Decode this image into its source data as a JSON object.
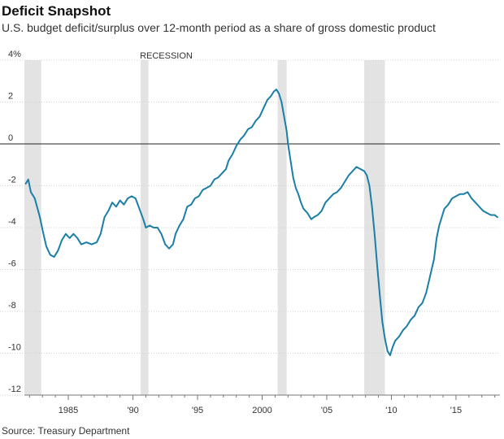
{
  "title": "Deficit Snapshot",
  "subtitle": "U.S. budget deficit/surplus over 12-month period as a share of gross domestic product",
  "source": "Source: Treasury Department",
  "colors": {
    "line": "#1a7ea8",
    "recession": "#e3e3e3",
    "grid": "#d0d0d0",
    "zero": "#222222"
  },
  "chart_data": {
    "type": "line",
    "title": "Deficit Snapshot",
    "ylim": [
      -12,
      4
    ],
    "xlim": [
      1981.6,
      2018.4
    ],
    "grid": true,
    "y_ticks": [
      {
        "value": 4,
        "label": "4%"
      },
      {
        "value": 2,
        "label": "2"
      },
      {
        "value": 0,
        "label": "0"
      },
      {
        "value": -2,
        "label": "-2"
      },
      {
        "value": -4,
        "label": "-4"
      },
      {
        "value": -6,
        "label": "-6"
      },
      {
        "value": -8,
        "label": "-8"
      },
      {
        "value": -10,
        "label": "-10"
      },
      {
        "value": -12,
        "label": "-12"
      }
    ],
    "x_ticks": [
      {
        "value": 1985,
        "label": "1985"
      },
      {
        "value": 1990,
        "label": "'90"
      },
      {
        "value": 1995,
        "label": "'95"
      },
      {
        "value": 2000,
        "label": "2000"
      },
      {
        "value": 2005,
        "label": "'05"
      },
      {
        "value": 2010,
        "label": "'10"
      },
      {
        "value": 2015,
        "label": "'15"
      }
    ],
    "recession_label": "RECESSION",
    "recessions": [
      [
        1981.6,
        1982.9
      ],
      [
        1990.6,
        1991.2
      ],
      [
        2001.2,
        2001.9
      ],
      [
        2007.9,
        2009.5
      ]
    ],
    "series": [
      {
        "values": [
          [
            1981.7,
            -1.9
          ],
          [
            1981.9,
            -1.7
          ],
          [
            1982.1,
            -2.3
          ],
          [
            1982.4,
            -2.6
          ],
          [
            1982.8,
            -3.5
          ],
          [
            1983.0,
            -4.1
          ],
          [
            1983.3,
            -4.9
          ],
          [
            1983.6,
            -5.3
          ],
          [
            1983.9,
            -5.4
          ],
          [
            1984.2,
            -5.1
          ],
          [
            1984.5,
            -4.6
          ],
          [
            1984.8,
            -4.3
          ],
          [
            1985.1,
            -4.5
          ],
          [
            1985.4,
            -4.3
          ],
          [
            1985.7,
            -4.5
          ],
          [
            1986.0,
            -4.8
          ],
          [
            1986.4,
            -4.7
          ],
          [
            1986.8,
            -4.8
          ],
          [
            1987.2,
            -4.7
          ],
          [
            1987.5,
            -4.3
          ],
          [
            1987.8,
            -3.5
          ],
          [
            1988.1,
            -3.2
          ],
          [
            1988.4,
            -2.8
          ],
          [
            1988.7,
            -3.0
          ],
          [
            1989.0,
            -2.7
          ],
          [
            1989.3,
            -2.9
          ],
          [
            1989.6,
            -2.6
          ],
          [
            1989.9,
            -2.5
          ],
          [
            1990.2,
            -2.6
          ],
          [
            1990.5,
            -3.1
          ],
          [
            1990.8,
            -3.6
          ],
          [
            1991.0,
            -4.0
          ],
          [
            1991.3,
            -3.9
          ],
          [
            1991.6,
            -4.0
          ],
          [
            1991.9,
            -4.0
          ],
          [
            1992.2,
            -4.3
          ],
          [
            1992.5,
            -4.8
          ],
          [
            1992.8,
            -5.0
          ],
          [
            1993.1,
            -4.8
          ],
          [
            1993.3,
            -4.3
          ],
          [
            1993.6,
            -3.9
          ],
          [
            1993.9,
            -3.6
          ],
          [
            1994.2,
            -3.0
          ],
          [
            1994.5,
            -2.9
          ],
          [
            1994.8,
            -2.6
          ],
          [
            1995.1,
            -2.5
          ],
          [
            1995.4,
            -2.2
          ],
          [
            1995.7,
            -2.1
          ],
          [
            1996.0,
            -2.0
          ],
          [
            1996.3,
            -1.7
          ],
          [
            1996.6,
            -1.6
          ],
          [
            1996.9,
            -1.4
          ],
          [
            1997.2,
            -1.2
          ],
          [
            1997.4,
            -0.8
          ],
          [
            1997.7,
            -0.5
          ],
          [
            1998.0,
            -0.1
          ],
          [
            1998.3,
            0.2
          ],
          [
            1998.6,
            0.4
          ],
          [
            1998.9,
            0.7
          ],
          [
            1999.2,
            0.8
          ],
          [
            1999.5,
            1.1
          ],
          [
            1999.8,
            1.3
          ],
          [
            2000.1,
            1.7
          ],
          [
            2000.4,
            2.1
          ],
          [
            2000.7,
            2.3
          ],
          [
            2000.9,
            2.5
          ],
          [
            2001.1,
            2.6
          ],
          [
            2001.3,
            2.4
          ],
          [
            2001.5,
            2.0
          ],
          [
            2001.7,
            1.3
          ],
          [
            2001.9,
            0.6
          ],
          [
            2002.0,
            0.0
          ],
          [
            2002.2,
            -0.8
          ],
          [
            2002.4,
            -1.6
          ],
          [
            2002.6,
            -2.1
          ],
          [
            2002.8,
            -2.4
          ],
          [
            2003.0,
            -2.8
          ],
          [
            2003.2,
            -3.1
          ],
          [
            2003.5,
            -3.3
          ],
          [
            2003.8,
            -3.6
          ],
          [
            2004.0,
            -3.5
          ],
          [
            2004.3,
            -3.4
          ],
          [
            2004.6,
            -3.2
          ],
          [
            2004.9,
            -2.8
          ],
          [
            2005.2,
            -2.6
          ],
          [
            2005.5,
            -2.4
          ],
          [
            2005.8,
            -2.3
          ],
          [
            2006.1,
            -2.1
          ],
          [
            2006.4,
            -1.8
          ],
          [
            2006.7,
            -1.5
          ],
          [
            2007.0,
            -1.3
          ],
          [
            2007.3,
            -1.1
          ],
          [
            2007.6,
            -1.2
          ],
          [
            2007.9,
            -1.3
          ],
          [
            2008.1,
            -1.5
          ],
          [
            2008.3,
            -2.0
          ],
          [
            2008.5,
            -3.0
          ],
          [
            2008.7,
            -4.3
          ],
          [
            2008.9,
            -5.8
          ],
          [
            2009.1,
            -7.2
          ],
          [
            2009.3,
            -8.5
          ],
          [
            2009.5,
            -9.3
          ],
          [
            2009.7,
            -9.9
          ],
          [
            2009.9,
            -10.1
          ],
          [
            2010.1,
            -9.7
          ],
          [
            2010.3,
            -9.4
          ],
          [
            2010.6,
            -9.2
          ],
          [
            2010.9,
            -8.9
          ],
          [
            2011.2,
            -8.7
          ],
          [
            2011.5,
            -8.4
          ],
          [
            2011.8,
            -8.2
          ],
          [
            2012.1,
            -7.8
          ],
          [
            2012.4,
            -7.6
          ],
          [
            2012.7,
            -7.1
          ],
          [
            2013.0,
            -6.3
          ],
          [
            2013.3,
            -5.5
          ],
          [
            2013.5,
            -4.5
          ],
          [
            2013.7,
            -3.9
          ],
          [
            2013.9,
            -3.5
          ],
          [
            2014.1,
            -3.1
          ],
          [
            2014.4,
            -2.9
          ],
          [
            2014.7,
            -2.6
          ],
          [
            2015.0,
            -2.5
          ],
          [
            2015.3,
            -2.4
          ],
          [
            2015.6,
            -2.4
          ],
          [
            2015.9,
            -2.3
          ],
          [
            2016.2,
            -2.6
          ],
          [
            2016.5,
            -2.8
          ],
          [
            2016.8,
            -3.0
          ],
          [
            2017.1,
            -3.2
          ],
          [
            2017.4,
            -3.3
          ],
          [
            2017.7,
            -3.4
          ],
          [
            2018.0,
            -3.4
          ],
          [
            2018.2,
            -3.5
          ]
        ]
      }
    ]
  }
}
